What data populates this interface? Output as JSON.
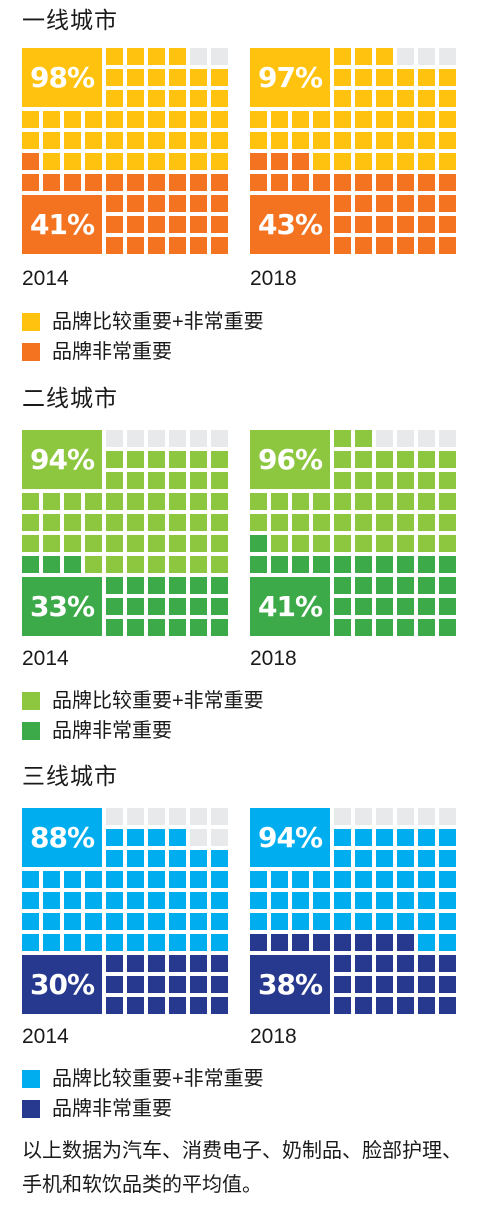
{
  "footnote": "以上数据为汽车、消费电子、奶制品、脸部护理、手机和软饮品类的平均值。",
  "chart_data": [
    {
      "type": "waffle",
      "title": "一线城市",
      "colors": {
        "outer": "#FFC20E",
        "inner": "#F37321",
        "empty": "#E8E9EB"
      },
      "legend": [
        "品牌比较重要+非常重要",
        "品牌非常重要"
      ],
      "panels": [
        {
          "year": "2014",
          "outer_pct": 98,
          "outer_label": "98%",
          "inner_pct": 41,
          "inner_label": "41%"
        },
        {
          "year": "2018",
          "outer_pct": 97,
          "outer_label": "97%",
          "inner_pct": 43,
          "inner_label": "43%"
        }
      ]
    },
    {
      "type": "waffle",
      "title": "二线城市",
      "colors": {
        "outer": "#8DC63F",
        "inner": "#3DAA49",
        "empty": "#E8E9EB"
      },
      "legend": [
        "品牌比较重要+非常重要",
        "品牌非常重要"
      ],
      "panels": [
        {
          "year": "2014",
          "outer_pct": 94,
          "outer_label": "94%",
          "inner_pct": 33,
          "inner_label": "33%"
        },
        {
          "year": "2018",
          "outer_pct": 96,
          "outer_label": "96%",
          "inner_pct": 41,
          "inner_label": "41%"
        }
      ]
    },
    {
      "type": "waffle",
      "title": "三线城市",
      "colors": {
        "outer": "#00AEEF",
        "inner": "#27388F",
        "empty": "#E8E9EB"
      },
      "legend": [
        "品牌比较重要+非常重要",
        "品牌非常重要"
      ],
      "panels": [
        {
          "year": "2014",
          "outer_pct": 88,
          "outer_label": "88%",
          "inner_pct": 30,
          "inner_label": "30%"
        },
        {
          "year": "2018",
          "outer_pct": 94,
          "outer_label": "94%",
          "inner_pct": 38,
          "inner_label": "38%"
        }
      ]
    }
  ]
}
